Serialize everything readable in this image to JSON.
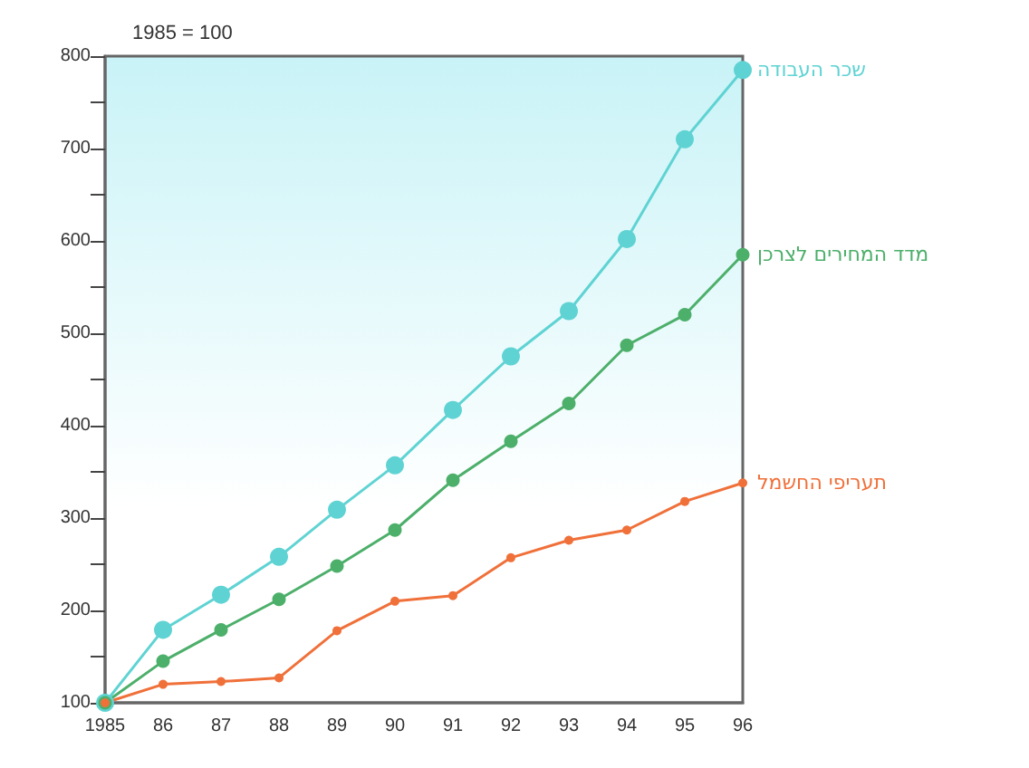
{
  "chart_data": {
    "type": "line",
    "title": "1985 = 100",
    "categories": [
      "1985",
      "86",
      "87",
      "88",
      "89",
      "90",
      "91",
      "92",
      "93",
      "94",
      "95",
      "96"
    ],
    "series": [
      {
        "name": "שכר העבודה",
        "color": "#5fd3d3",
        "values": [
          100,
          179,
          217,
          258,
          309,
          357,
          417,
          475,
          524,
          602,
          710,
          785
        ]
      },
      {
        "name": "מדד המחירים לצרכן",
        "color": "#4caf6a",
        "values": [
          100,
          145,
          179,
          212,
          248,
          287,
          341,
          383,
          424,
          487,
          520,
          585
        ]
      },
      {
        "name": "תעריפי החשמל",
        "color": "#f0703a",
        "values": [
          100,
          120,
          123,
          127,
          178,
          210,
          216,
          257,
          276,
          287,
          318,
          338
        ]
      }
    ],
    "ylim": [
      100,
      800
    ],
    "yticks": [
      100,
      {
        "value": 150,
        "label": null
      },
      200,
      {
        "value": 250,
        "label": null
      },
      300,
      {
        "value": 350,
        "label": null
      },
      400,
      {
        "value": 450,
        "label": null
      },
      500,
      {
        "value": 550,
        "label": null
      },
      600,
      {
        "value": 650,
        "label": null
      },
      700,
      {
        "value": 750,
        "label": null
      },
      800
    ],
    "grid": false,
    "legend": false,
    "marker": "circle",
    "line_style": "solid"
  }
}
